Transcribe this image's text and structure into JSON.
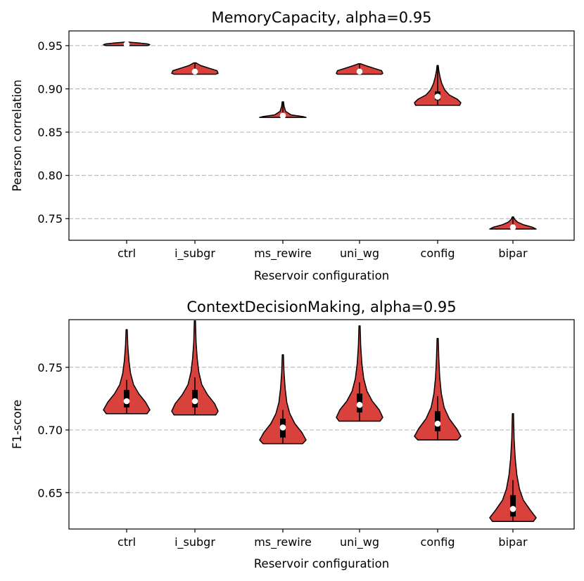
{
  "colors": {
    "violin_fill": "#d9413c",
    "violin_edge": "#000000",
    "median": "#ffffff",
    "grid": "#b0b0b0"
  },
  "chart_data": [
    {
      "type": "violin",
      "title": "MemoryCapacity, alpha=0.95",
      "xlabel": "Reservoir configuration",
      "ylabel": "Pearson correlation",
      "ylim": [
        0.725,
        0.967
      ],
      "yticks": [
        "0.75",
        "0.80",
        "0.85",
        "0.90",
        "0.95"
      ],
      "categories": [
        "ctrl",
        "i_subgr",
        "ms_rewire",
        "uni_wg",
        "config",
        "bipar"
      ],
      "violins": [
        {
          "min": 0.95,
          "max": 0.954,
          "median": 0.9515,
          "q1": 0.951,
          "q3": 0.952,
          "widths": [
            [
              0.95,
              0.9
            ],
            [
              0.951,
              1.0
            ],
            [
              0.952,
              0.9
            ],
            [
              0.953,
              0.55
            ],
            [
              0.954,
              0.1
            ]
          ]
        },
        {
          "min": 0.917,
          "max": 0.93,
          "median": 0.92,
          "q1": 0.919,
          "q3": 0.922,
          "widths": [
            [
              0.917,
              0.9
            ],
            [
              0.918,
              1.0
            ],
            [
              0.921,
              0.95
            ],
            [
              0.924,
              0.6
            ],
            [
              0.927,
              0.25
            ],
            [
              0.93,
              0.05
            ]
          ]
        },
        {
          "min": 0.867,
          "max": 0.885,
          "median": 0.869,
          "q1": 0.868,
          "q3": 0.87,
          "widths": [
            [
              0.867,
              1.0
            ],
            [
              0.868,
              0.85
            ],
            [
              0.87,
              0.35
            ],
            [
              0.874,
              0.12
            ],
            [
              0.88,
              0.05
            ],
            [
              0.885,
              0.03
            ]
          ]
        },
        {
          "min": 0.917,
          "max": 0.929,
          "median": 0.92,
          "q1": 0.919,
          "q3": 0.922,
          "widths": [
            [
              0.917,
              0.95
            ],
            [
              0.918,
              1.0
            ],
            [
              0.921,
              0.95
            ],
            [
              0.924,
              0.6
            ],
            [
              0.927,
              0.25
            ],
            [
              0.929,
              0.05
            ]
          ]
        },
        {
          "min": 0.881,
          "max": 0.927,
          "median": 0.891,
          "q1": 0.887,
          "q3": 0.897,
          "widths": [
            [
              0.881,
              0.95
            ],
            [
              0.884,
              1.0
            ],
            [
              0.888,
              0.85
            ],
            [
              0.893,
              0.5
            ],
            [
              0.899,
              0.3
            ],
            [
              0.906,
              0.18
            ],
            [
              0.914,
              0.1
            ],
            [
              0.921,
              0.05
            ],
            [
              0.927,
              0.02
            ]
          ]
        },
        {
          "min": 0.738,
          "max": 0.752,
          "median": 0.74,
          "q1": 0.739,
          "q3": 0.742,
          "widths": [
            [
              0.738,
              1.0
            ],
            [
              0.74,
              0.85
            ],
            [
              0.743,
              0.45
            ],
            [
              0.746,
              0.2
            ],
            [
              0.749,
              0.08
            ],
            [
              0.752,
              0.02
            ]
          ]
        }
      ]
    },
    {
      "type": "violin",
      "title": "ContextDecisionMaking, alpha=0.95",
      "xlabel": "Reservoir configuration",
      "ylabel": "F1-score",
      "ylim": [
        0.621,
        0.788
      ],
      "yticks": [
        "0.65",
        "0.70",
        "0.75"
      ],
      "categories": [
        "ctrl",
        "i_subgr",
        "ms_rewire",
        "uni_wg",
        "config",
        "bipar"
      ],
      "violins": [
        {
          "min": 0.713,
          "max": 0.78,
          "median": 0.723,
          "q1": 0.718,
          "q3": 0.732,
          "wlo": 0.713,
          "whi": 0.74,
          "widths": [
            [
              0.713,
              0.88
            ],
            [
              0.716,
              1.0
            ],
            [
              0.722,
              0.82
            ],
            [
              0.729,
              0.52
            ],
            [
              0.736,
              0.3
            ],
            [
              0.745,
              0.17
            ],
            [
              0.755,
              0.1
            ],
            [
              0.767,
              0.05
            ],
            [
              0.78,
              0.02
            ]
          ]
        },
        {
          "min": 0.712,
          "max": 0.787,
          "median": 0.723,
          "q1": 0.718,
          "q3": 0.732,
          "wlo": 0.712,
          "whi": 0.742,
          "widths": [
            [
              0.712,
              0.9
            ],
            [
              0.715,
              1.0
            ],
            [
              0.721,
              0.85
            ],
            [
              0.728,
              0.55
            ],
            [
              0.736,
              0.3
            ],
            [
              0.746,
              0.17
            ],
            [
              0.757,
              0.1
            ],
            [
              0.77,
              0.05
            ],
            [
              0.787,
              0.02
            ]
          ]
        },
        {
          "min": 0.689,
          "max": 0.76,
          "median": 0.702,
          "q1": 0.694,
          "q3": 0.709,
          "wlo": 0.689,
          "whi": 0.716,
          "widths": [
            [
              0.689,
              0.85
            ],
            [
              0.692,
              1.0
            ],
            [
              0.698,
              0.82
            ],
            [
              0.705,
              0.52
            ],
            [
              0.713,
              0.3
            ],
            [
              0.722,
              0.17
            ],
            [
              0.733,
              0.1
            ],
            [
              0.746,
              0.05
            ],
            [
              0.76,
              0.02
            ]
          ]
        },
        {
          "min": 0.707,
          "max": 0.783,
          "median": 0.72,
          "q1": 0.714,
          "q3": 0.729,
          "wlo": 0.707,
          "whi": 0.738,
          "widths": [
            [
              0.707,
              0.88
            ],
            [
              0.71,
              1.0
            ],
            [
              0.716,
              0.85
            ],
            [
              0.723,
              0.55
            ],
            [
              0.731,
              0.32
            ],
            [
              0.741,
              0.18
            ],
            [
              0.753,
              0.1
            ],
            [
              0.767,
              0.05
            ],
            [
              0.783,
              0.02
            ]
          ]
        },
        {
          "min": 0.692,
          "max": 0.773,
          "median": 0.705,
          "q1": 0.699,
          "q3": 0.715,
          "wlo": 0.692,
          "whi": 0.727,
          "widths": [
            [
              0.692,
              0.85
            ],
            [
              0.695,
              1.0
            ],
            [
              0.701,
              0.82
            ],
            [
              0.709,
              0.5
            ],
            [
              0.718,
              0.28
            ],
            [
              0.729,
              0.16
            ],
            [
              0.742,
              0.09
            ],
            [
              0.757,
              0.05
            ],
            [
              0.773,
              0.02
            ]
          ]
        },
        {
          "min": 0.627,
          "max": 0.713,
          "median": 0.637,
          "q1": 0.631,
          "q3": 0.648,
          "wlo": 0.627,
          "whi": 0.66,
          "widths": [
            [
              0.627,
              0.88
            ],
            [
              0.63,
              1.0
            ],
            [
              0.636,
              0.75
            ],
            [
              0.644,
              0.45
            ],
            [
              0.653,
              0.28
            ],
            [
              0.664,
              0.17
            ],
            [
              0.677,
              0.1
            ],
            [
              0.693,
              0.05
            ],
            [
              0.713,
              0.02
            ]
          ]
        }
      ]
    }
  ]
}
